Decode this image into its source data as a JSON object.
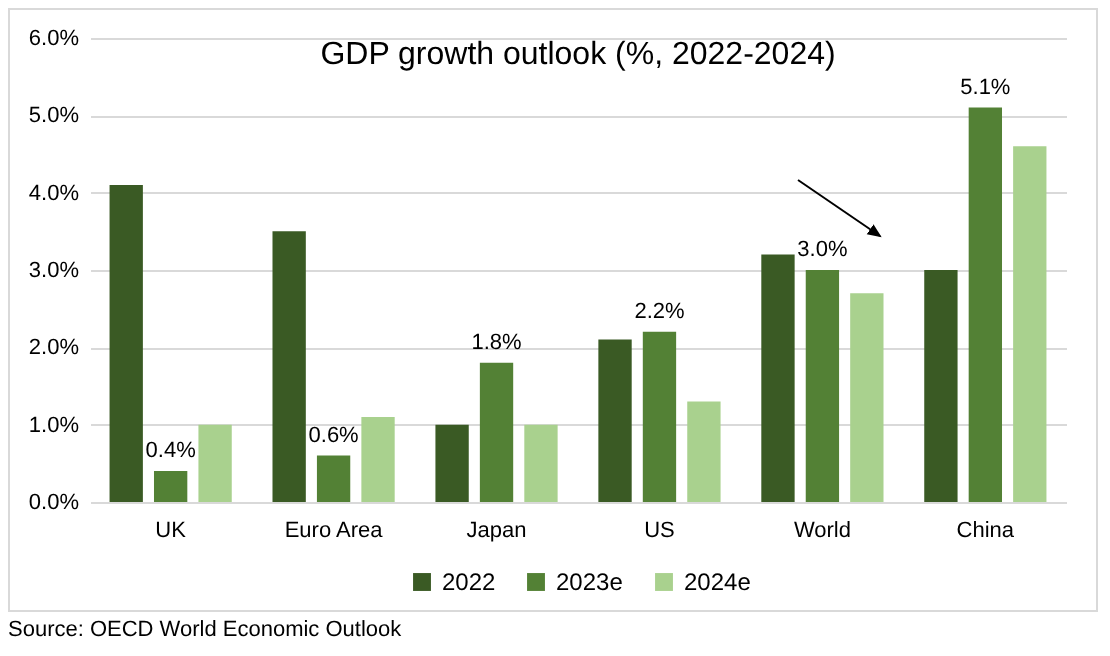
{
  "chart_data": {
    "type": "bar",
    "title": "GDP growth outlook (%, 2022-2024)",
    "categories": [
      "UK",
      "Euro Area",
      "Japan",
      "US",
      "World",
      "China"
    ],
    "series": [
      {
        "name": "2022",
        "color": "#3a5a24",
        "values": [
          4.1,
          3.5,
          1.0,
          2.1,
          3.2,
          3.0
        ]
      },
      {
        "name": "2023e",
        "color": "#538135",
        "values": [
          0.4,
          0.6,
          1.8,
          2.2,
          3.0,
          5.1
        ],
        "value_labels": [
          "0.4%",
          "0.6%",
          "1.8%",
          "2.2%",
          "3.0%",
          "5.1%"
        ]
      },
      {
        "name": "2024e",
        "color": "#a9d18e",
        "values": [
          1.0,
          1.1,
          1.0,
          1.3,
          2.7,
          4.6
        ]
      }
    ],
    "ylim": [
      0,
      6
    ],
    "yticks": [
      {
        "value": 0,
        "label": "0.0%"
      },
      {
        "value": 1,
        "label": "1.0%"
      },
      {
        "value": 2,
        "label": "2.0%"
      },
      {
        "value": 3,
        "label": "3.0%"
      },
      {
        "value": 4,
        "label": "4.0%"
      },
      {
        "value": 5,
        "label": "5.0%"
      },
      {
        "value": 6,
        "label": "6.0%"
      }
    ],
    "grid": "y",
    "legend": "bottom",
    "annotations": [
      "Source: OECD World Economic Outlook"
    ]
  }
}
